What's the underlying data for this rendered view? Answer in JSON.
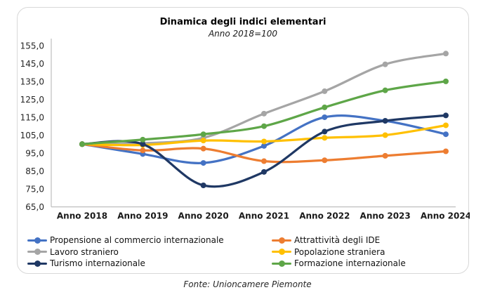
{
  "chart": {
    "title": "Dinamica degli indici elementari",
    "subtitle": "Anno 2018=100"
  },
  "footer": {
    "source": "Fonte: Unioncamere Piemonte"
  },
  "chart_data": {
    "type": "line",
    "title": "Dinamica degli indici elementari",
    "subtitle": "Anno 2018=100",
    "categories": [
      "Anno 2018",
      "Anno 2019",
      "Anno 2020",
      "Anno 2021",
      "Anno 2022",
      "Anno 2023",
      "Anno 2024"
    ],
    "series": [
      {
        "name": "Propensione al commercio internazionale",
        "color": "#4472C4",
        "values": [
          100,
          94.5,
          89.5,
          99,
          115,
          113,
          105.5
        ]
      },
      {
        "name": "Attrattività degli IDE",
        "color": "#ED7D31",
        "values": [
          100,
          96.5,
          97.5,
          90.5,
          91,
          93.5,
          96
        ]
      },
      {
        "name": "Lavoro straniero",
        "color": "#A5A5A5",
        "values": [
          100,
          100.5,
          103.5,
          117,
          129.5,
          144.5,
          150.5
        ]
      },
      {
        "name": "Popolazione straniera",
        "color": "#FFC000",
        "values": [
          100,
          99.5,
          102,
          101.5,
          103.5,
          105,
          110.5
        ]
      },
      {
        "name": "Turismo internazionale",
        "color": "#1F3864",
        "values": [
          100,
          100,
          77,
          84.5,
          107,
          113,
          116
        ]
      },
      {
        "name": "Formazione internazionale",
        "color": "#5EA648",
        "values": [
          100,
          102.5,
          105.5,
          110,
          120.5,
          130,
          135
        ]
      }
    ],
    "ylim": [
      65,
      155
    ],
    "yticks": {
      "values": [
        155,
        145,
        135,
        125,
        115,
        105,
        95,
        85,
        75,
        65
      ],
      "labels": [
        "155,0",
        "145,0",
        "135,0",
        "125,0",
        "115,0",
        "105,0",
        "95,0",
        "85,0",
        "75,0",
        "65,0"
      ]
    },
    "grid": false,
    "smooth": true,
    "legend_position": "bottom",
    "legend_columns": 2,
    "axis_color": "#BFBFBF"
  }
}
